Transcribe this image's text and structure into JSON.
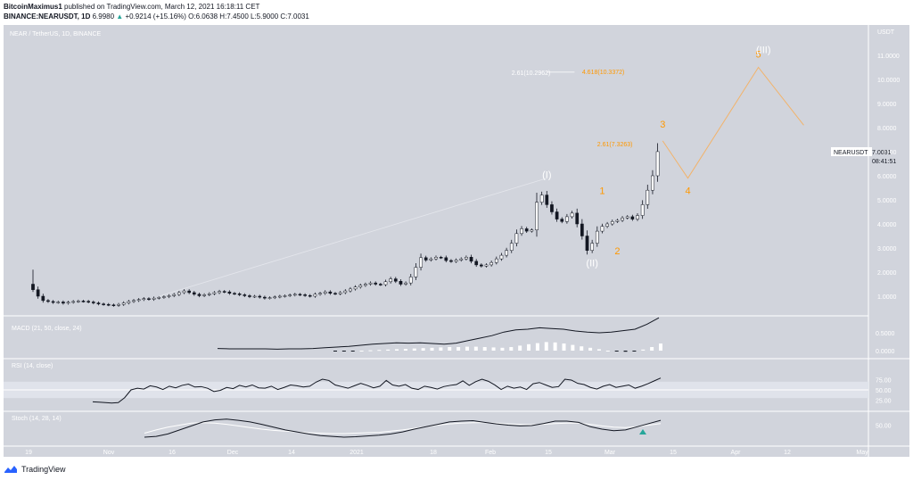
{
  "header": {
    "author": "BitcoinMaximus1",
    "published_text": "published on TradingView.com, March 12, 2021 16:18:11 CET",
    "symbol": "BINANCE:NEARUSDT, 1D",
    "price": "6.9980",
    "change": "+0.9214 (+15.16%)",
    "ohlc": "O:6.0638 H:7.4500 L:5.9000 C:7.0031"
  },
  "chart_data": {
    "type": "candlestick",
    "title": "NEAR / TetherUS, 1D, BINANCE",
    "currency": "USDT",
    "ylim": [
      0,
      12
    ],
    "yticks": [
      "1.0000",
      "2.0000",
      "3.0000",
      "4.0000",
      "5.0000",
      "6.0000",
      "7.0000",
      "8.0000",
      "9.0000",
      "10.0000",
      "11.0000"
    ],
    "ytop_label": "USDT",
    "xticks": [
      "19",
      "Nov",
      "16",
      "Dec",
      "14",
      "2021",
      "18",
      "Feb",
      "15",
      "Mar",
      "15",
      "Apr",
      "12",
      "May"
    ],
    "price_label": {
      "symbol": "NEARUSDT",
      "value": "7.0031",
      "countdown": "08:41:51"
    },
    "closes": [
      1.27,
      1.0,
      0.82,
      0.78,
      0.74,
      0.76,
      0.71,
      0.75,
      0.78,
      0.8,
      0.79,
      0.76,
      0.72,
      0.68,
      0.66,
      0.64,
      0.62,
      0.66,
      0.72,
      0.78,
      0.82,
      0.86,
      0.9,
      0.87,
      0.92,
      0.95,
      0.98,
      1.02,
      1.07,
      1.15,
      1.22,
      1.15,
      1.08,
      1.02,
      1.06,
      1.1,
      1.15,
      1.2,
      1.18,
      1.12,
      1.1,
      1.06,
      1.02,
      0.98,
      1.0,
      0.96,
      0.92,
      0.94,
      0.97,
      1.0,
      1.02,
      1.05,
      1.08,
      1.06,
      1.03,
      1.0,
      1.08,
      1.12,
      1.18,
      1.12,
      1.1,
      1.15,
      1.22,
      1.3,
      1.38,
      1.45,
      1.5,
      1.55,
      1.5,
      1.48,
      1.6,
      1.72,
      1.62,
      1.5,
      1.55,
      1.8,
      2.2,
      2.6,
      2.5,
      2.55,
      2.62,
      2.6,
      2.48,
      2.44,
      2.5,
      2.55,
      2.62,
      2.45,
      2.3,
      2.25,
      2.3,
      2.4,
      2.55,
      2.7,
      2.9,
      3.2,
      3.6,
      3.8,
      3.7,
      3.75,
      4.9,
      5.2,
      4.8,
      4.5,
      4.2,
      4.1,
      4.3,
      4.45,
      4.0,
      3.5,
      2.9,
      3.2,
      3.7,
      3.9,
      4.0,
      4.1,
      4.15,
      4.25,
      4.3,
      4.2,
      4.35,
      4.8,
      5.4,
      6.0,
      7.0031
    ],
    "waves": [
      {
        "label": "(I)",
        "x_index": 102,
        "price": 5.9,
        "color": "#ffffff"
      },
      {
        "label": "(II)",
        "x_index": 111,
        "price": 2.25,
        "color": "#ffffff"
      },
      {
        "label": "1",
        "x_index": 113,
        "price": 5.25,
        "color": "#ff9800"
      },
      {
        "label": "2",
        "x_index": 116,
        "price": 2.75,
        "color": "#ff9800"
      },
      {
        "label": "3",
        "x_index": 125,
        "price": 8.0,
        "color": "#ff9800"
      },
      {
        "label": "4",
        "x_index": 130,
        "price": 5.25,
        "color": "#ff9800"
      },
      {
        "label": "5",
        "x_index": 144,
        "price": 10.9,
        "color": "#ff9800"
      },
      {
        "label": "(III)",
        "x_index": 145,
        "price": 11.1,
        "color": "#ffffff"
      }
    ],
    "projection_path": [
      [
        125,
        7.45
      ],
      [
        130,
        5.9
      ],
      [
        144,
        10.5
      ],
      [
        153,
        8.1
      ]
    ],
    "fib_labels": [
      {
        "text": "2.61(7.3263)",
        "price": 7.3263,
        "color": "#ff9800",
        "x_index": 112
      },
      {
        "text": "2.61(10.2962)",
        "price": 10.2962,
        "color": "#ffffff",
        "x_index": 95
      },
      {
        "text": "4.618(10.3372)",
        "price": 10.3372,
        "color": "#ff9800",
        "x_index": 109
      }
    ],
    "macd": {
      "title": "MACD (21, 50, close, 24)",
      "yticks": [
        "0.5000",
        "0.0000"
      ],
      "line": [
        0.06,
        0.05,
        0.05,
        0.05,
        0.05,
        0.04,
        0.05,
        0.05,
        0.06,
        0.08,
        0.1,
        0.12,
        0.15,
        0.18,
        0.2,
        0.22,
        0.21,
        0.22,
        0.2,
        0.18,
        0.21,
        0.28,
        0.35,
        0.42,
        0.52,
        0.58,
        0.6,
        0.64,
        0.62,
        0.6,
        0.55,
        0.52,
        0.5,
        0.52,
        0.56,
        0.6,
        0.74,
        0.92
      ],
      "histogram": [
        -0.02,
        -0.02,
        -0.01,
        0.0,
        0.01,
        0.02,
        0.03,
        0.04,
        0.05,
        0.06,
        0.07,
        0.08,
        0.09,
        0.1,
        0.1,
        0.11,
        0.11,
        0.1,
        0.09,
        0.08,
        0.1,
        0.14,
        0.18,
        0.21,
        0.24,
        0.23,
        0.2,
        0.16,
        0.12,
        0.08,
        0.04,
        0.0,
        -0.02,
        -0.03,
        -0.01,
        0.03,
        0.1,
        0.2
      ]
    },
    "rsi": {
      "title": "RSI (14, close)",
      "yticks": [
        "75.00",
        "50.00",
        "25.00"
      ],
      "values": [
        21,
        20,
        19,
        18,
        19,
        31,
        50,
        54,
        52,
        60,
        57,
        51,
        59,
        55,
        61,
        64,
        57,
        58,
        54,
        46,
        49,
        56,
        53,
        61,
        57,
        62,
        55,
        54,
        59,
        51,
        56,
        62,
        60,
        57,
        59,
        69,
        76,
        73,
        62,
        58,
        54,
        60,
        66,
        61,
        55,
        59,
        73,
        62,
        59,
        63,
        54,
        51,
        59,
        56,
        52,
        58,
        61,
        63,
        72,
        61,
        70,
        76,
        71,
        62,
        51,
        59,
        54,
        57,
        51,
        65,
        68,
        62,
        56,
        58,
        76,
        74,
        66,
        63,
        56,
        52,
        59,
        63,
        56,
        59,
        62,
        54,
        59,
        65,
        72,
        79
      ]
    },
    "stoch": {
      "title": "Stoch (14, 28, 14)",
      "yticks": [
        "50.00"
      ],
      "k": [
        20,
        22,
        28,
        38,
        48,
        58,
        63,
        65,
        62,
        58,
        52,
        45,
        38,
        33,
        28,
        24,
        22,
        20,
        21,
        23,
        25,
        28,
        33,
        40,
        46,
        52,
        58,
        60,
        61,
        57,
        53,
        50,
        48,
        49,
        54,
        60,
        60,
        57,
        46,
        40,
        36,
        38,
        46,
        54,
        62
      ],
      "d": [
        30,
        38,
        45,
        50,
        55,
        56,
        55,
        52,
        48,
        44,
        40,
        37,
        35,
        33,
        31,
        30,
        29,
        29,
        30,
        31,
        32,
        35,
        38,
        42,
        46,
        50,
        53,
        55,
        56,
        56,
        55,
        53,
        52,
        51,
        52,
        54,
        55,
        55,
        52,
        48,
        45,
        44,
        46,
        50,
        54
      ]
    },
    "grid": false,
    "legend": "none"
  },
  "footer": {
    "brand": "TradingView"
  },
  "colors": {
    "background": "#d1d4dc",
    "candle_up": "#ffffff",
    "candle_down": "#131722",
    "orange": "#ff9800"
  }
}
